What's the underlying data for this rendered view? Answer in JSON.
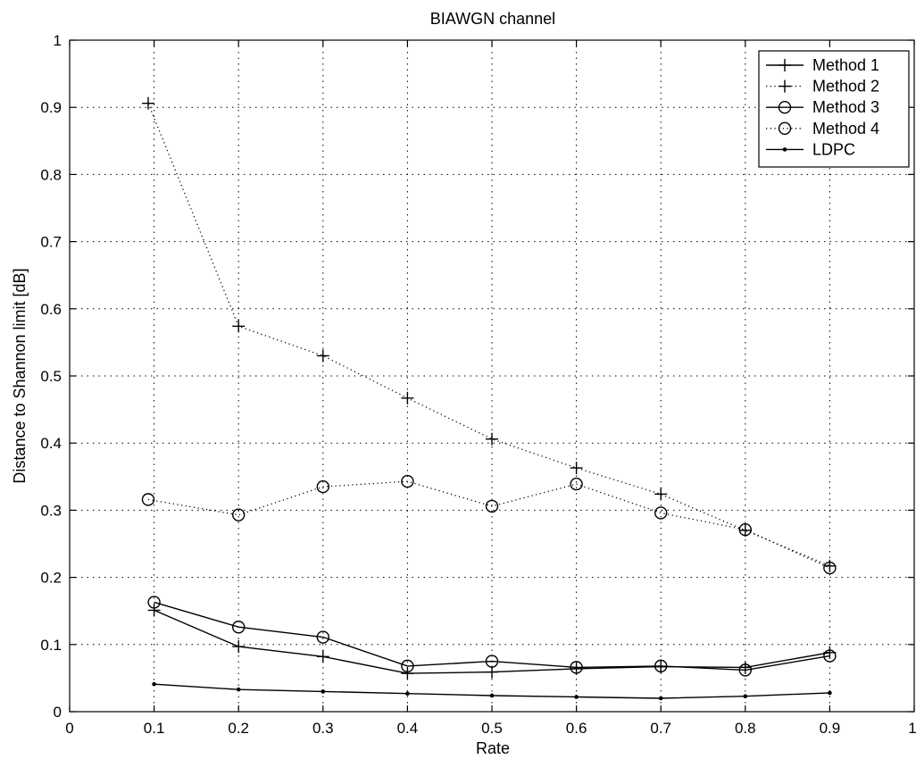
{
  "chart_data": {
    "type": "line",
    "title": "BIAWGN channel",
    "xlabel": "Rate",
    "ylabel": "Distance to Shannon limit [dB]",
    "xlim": [
      0,
      1
    ],
    "ylim": [
      0,
      1
    ],
    "x_ticks": [
      "0",
      "0.1",
      "0.2",
      "0.3",
      "0.4",
      "0.5",
      "0.6",
      "0.7",
      "0.8",
      "0.9",
      "1"
    ],
    "y_ticks": [
      "0",
      "0.1",
      "0.2",
      "0.3",
      "0.4",
      "0.5",
      "0.6",
      "0.7",
      "0.8",
      "0.9",
      "1"
    ],
    "grid": true,
    "legend_position": "top-right",
    "series": [
      {
        "name": "Method 1",
        "line": "solid",
        "marker": "plus",
        "color": "#000000",
        "points": [
          [
            0.1,
            0.151
          ],
          [
            0.2,
            0.097
          ],
          [
            0.3,
            0.082
          ],
          [
            0.4,
            0.057
          ],
          [
            0.5,
            0.059
          ],
          [
            0.6,
            0.064
          ],
          [
            0.7,
            0.067
          ],
          [
            0.8,
            0.066
          ],
          [
            0.9,
            0.088
          ]
        ]
      },
      {
        "name": "Method 2",
        "line": "dotted",
        "marker": "plus",
        "color": "#000000",
        "points": [
          [
            0.093,
            0.906
          ],
          [
            0.2,
            0.574
          ],
          [
            0.3,
            0.53
          ],
          [
            0.4,
            0.467
          ],
          [
            0.5,
            0.406
          ],
          [
            0.6,
            0.363
          ],
          [
            0.7,
            0.324
          ],
          [
            0.8,
            0.27
          ],
          [
            0.9,
            0.217
          ]
        ]
      },
      {
        "name": "Method 3",
        "line": "solid",
        "marker": "circle",
        "color": "#000000",
        "points": [
          [
            0.1,
            0.163
          ],
          [
            0.2,
            0.126
          ],
          [
            0.3,
            0.111
          ],
          [
            0.4,
            0.068
          ],
          [
            0.5,
            0.075
          ],
          [
            0.6,
            0.066
          ],
          [
            0.7,
            0.068
          ],
          [
            0.8,
            0.062
          ],
          [
            0.9,
            0.083
          ]
        ]
      },
      {
        "name": "Method 4",
        "line": "dotted",
        "marker": "circle",
        "color": "#000000",
        "points": [
          [
            0.093,
            0.316
          ],
          [
            0.2,
            0.293
          ],
          [
            0.3,
            0.335
          ],
          [
            0.4,
            0.343
          ],
          [
            0.5,
            0.306
          ],
          [
            0.6,
            0.339
          ],
          [
            0.7,
            0.296
          ],
          [
            0.8,
            0.271
          ],
          [
            0.9,
            0.214
          ]
        ]
      },
      {
        "name": "LDPC",
        "line": "solid",
        "marker": "dot",
        "color": "#000000",
        "points": [
          [
            0.1,
            0.041
          ],
          [
            0.2,
            0.033
          ],
          [
            0.3,
            0.03
          ],
          [
            0.4,
            0.027
          ],
          [
            0.5,
            0.024
          ],
          [
            0.6,
            0.022
          ],
          [
            0.7,
            0.02
          ],
          [
            0.8,
            0.023
          ],
          [
            0.9,
            0.028
          ]
        ]
      }
    ]
  }
}
